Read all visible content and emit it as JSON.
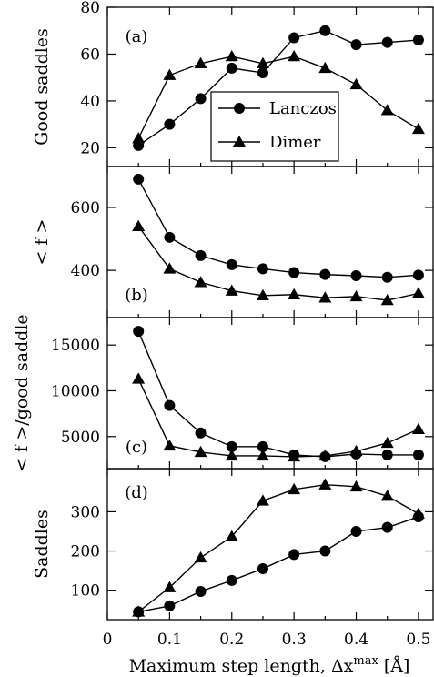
{
  "chart_data": [
    {
      "panel": "(a)",
      "type": "line",
      "ylabel": "Good saddles",
      "ylim": [
        12,
        80
      ],
      "yticks": [
        20,
        40,
        60,
        80
      ],
      "x": [
        0.05,
        0.1,
        0.15,
        0.2,
        0.25,
        0.3,
        0.35,
        0.4,
        0.45,
        0.5
      ],
      "series": [
        {
          "name": "Lanczos",
          "marker": "circle",
          "values": [
            21,
            30,
            41,
            54,
            52,
            67,
            70,
            64,
            65,
            66
          ]
        },
        {
          "name": "Dimer",
          "marker": "triangle",
          "values": [
            24,
            51,
            56,
            59,
            56,
            59,
            54,
            47,
            36,
            28
          ]
        }
      ],
      "legend": {
        "position": "middle-right",
        "entries": [
          "Lanczos",
          "Dimer"
        ]
      }
    },
    {
      "panel": "(b)",
      "type": "line",
      "ylabel": "< f >",
      "ylim": [
        250,
        730
      ],
      "yticks": [
        400,
        600
      ],
      "x": [
        0.05,
        0.1,
        0.15,
        0.2,
        0.25,
        0.3,
        0.35,
        0.4,
        0.45,
        0.5
      ],
      "series": [
        {
          "name": "Lanczos",
          "marker": "circle",
          "values": [
            690,
            505,
            447,
            418,
            405,
            393,
            387,
            383,
            378,
            385
          ]
        },
        {
          "name": "Dimer",
          "marker": "triangle",
          "values": [
            540,
            405,
            362,
            335,
            320,
            323,
            313,
            317,
            305,
            327
          ]
        }
      ]
    },
    {
      "panel": "(c)",
      "type": "line",
      "ylabel": "< f >/good saddle",
      "ylim": [
        1500,
        18000
      ],
      "yticks": [
        5000,
        10000,
        15000
      ],
      "x": [
        0.05,
        0.1,
        0.15,
        0.2,
        0.25,
        0.3,
        0.35,
        0.4,
        0.45,
        0.5
      ],
      "series": [
        {
          "name": "Lanczos",
          "marker": "circle",
          "values": [
            16500,
            8400,
            5400,
            3900,
            3900,
            3000,
            2800,
            3100,
            3000,
            3000
          ]
        },
        {
          "name": "Dimer",
          "marker": "triangle",
          "values": [
            11300,
            4000,
            3300,
            2900,
            2900,
            2800,
            2900,
            3400,
            4300,
            5800
          ]
        }
      ]
    },
    {
      "panel": "(d)",
      "type": "line",
      "ylabel": "Saddles",
      "xlabel": "Maximum step length, Δx",
      "xlabel_superscript": "max",
      "xlabel_unit": " [Å]",
      "xlim": [
        0,
        0.525
      ],
      "xticks": [
        0,
        0.1,
        0.2,
        0.3,
        0.4,
        0.5
      ],
      "ylim": [
        25,
        410
      ],
      "yticks": [
        100,
        200,
        300
      ],
      "x": [
        0.05,
        0.1,
        0.15,
        0.2,
        0.25,
        0.3,
        0.35,
        0.4,
        0.45,
        0.5
      ],
      "series": [
        {
          "name": "Lanczos",
          "marker": "circle",
          "values": [
            45,
            60,
            97,
            125,
            155,
            191,
            200,
            250,
            260,
            287
          ]
        },
        {
          "name": "Dimer",
          "marker": "triangle",
          "values": [
            45,
            107,
            183,
            237,
            328,
            357,
            369,
            364,
            340,
            295
          ]
        }
      ]
    }
  ]
}
